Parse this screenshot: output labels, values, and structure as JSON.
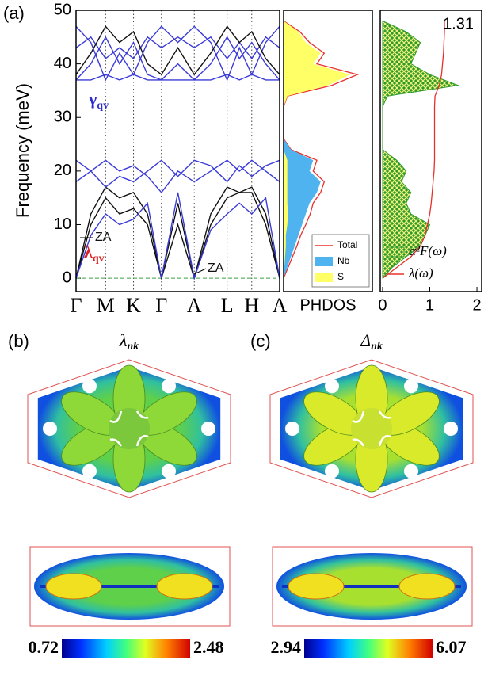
{
  "chart_data": [
    {
      "type": "line",
      "panel_label": "(a)",
      "ylabel": "Frequency (meV)",
      "x": [
        0,
        0.18,
        0.36,
        0.53,
        0.7,
        0.87,
        1.04,
        1.24,
        1.44,
        1.64,
        1.84,
        1.99,
        2.14,
        2.31,
        2.48
      ],
      "xlim": [
        0,
        2.48
      ],
      "xticks": [
        {
          "value": 0,
          "label": "Γ"
        },
        {
          "value": 0.36,
          "label": "M"
        },
        {
          "value": 0.7,
          "label": "K"
        },
        {
          "value": 1.04,
          "label": "Γ"
        },
        {
          "value": 1.44,
          "label": "A"
        },
        {
          "value": 1.84,
          "label": "L"
        },
        {
          "value": 2.14,
          "label": "H"
        },
        {
          "value": 2.48,
          "label": "A"
        }
      ],
      "ylim": [
        -2.5,
        50
      ],
      "yticks": [
        0,
        10,
        20,
        30,
        40,
        50
      ],
      "series": [
        {
          "color": "#111111",
          "values": [
            0,
            10,
            15,
            12,
            13,
            10,
            0,
            10,
            0,
            10,
            15,
            16,
            16,
            10,
            0
          ]
        },
        {
          "color": "#111111",
          "values": [
            0,
            12,
            17,
            15,
            16,
            12,
            0,
            14,
            0,
            12,
            17,
            16,
            17,
            12,
            0
          ]
        },
        {
          "color": "#3a3ad8",
          "values": [
            0,
            8,
            12,
            10,
            11,
            14,
            0,
            16,
            0,
            9,
            12,
            14,
            12,
            15,
            0
          ]
        },
        {
          "color": "#3a3ad8",
          "values": [
            18,
            20,
            22,
            20,
            21,
            19,
            16,
            20,
            18,
            20,
            22,
            20,
            22,
            20,
            18
          ]
        },
        {
          "color": "#3a3ad8",
          "values": [
            22,
            20,
            17,
            19,
            18,
            20,
            22,
            19,
            22,
            21,
            18,
            21,
            19,
            21,
            22
          ]
        },
        {
          "color": "#3a3ad8",
          "values": [
            37,
            40,
            45,
            40,
            44,
            38,
            37,
            40,
            37,
            40,
            45,
            41,
            44,
            40,
            37
          ]
        },
        {
          "color": "#3a3ad8",
          "values": [
            47,
            44,
            37,
            42,
            38,
            44,
            47,
            44,
            47,
            44,
            37,
            43,
            38,
            44,
            47
          ]
        },
        {
          "color": "#3a3ad8",
          "values": [
            37,
            37,
            38,
            37,
            38,
            37,
            37,
            37,
            37,
            37,
            38,
            37,
            38,
            37,
            37
          ]
        },
        {
          "color": "#3a3ad8",
          "values": [
            43,
            45,
            41,
            43,
            41,
            45,
            43,
            45,
            43,
            45,
            41,
            44,
            41,
            45,
            43
          ]
        },
        {
          "color": "#111111",
          "values": [
            38,
            42,
            47,
            44,
            46,
            40,
            38,
            43,
            38,
            42,
            47,
            44,
            46,
            41,
            38
          ]
        }
      ],
      "annotations": [
        {
          "text": "ZA",
          "color": "#111111"
        },
        {
          "text": "ZA",
          "color": "#111111"
        },
        {
          "text": "γ",
          "sub": "qv",
          "color": "#2b2bd0"
        },
        {
          "text": "λ",
          "sub": "qv",
          "color": "#e02020"
        }
      ]
    },
    {
      "type": "area",
      "xlabel": "PHDOS",
      "y": [
        0,
        2,
        4,
        6,
        8,
        10,
        12,
        14,
        16,
        18,
        20,
        22,
        24,
        26,
        28,
        30,
        32,
        34,
        36,
        38,
        40,
        42,
        44,
        46,
        48
      ],
      "xlim": [
        0,
        1.2
      ],
      "ylim": [
        -2.5,
        50
      ],
      "legend": "lower right",
      "series": [
        {
          "name": "Total",
          "color": "#e8302a",
          "style": "line",
          "values": [
            0,
            0.06,
            0.12,
            0.18,
            0.23,
            0.3,
            0.36,
            0.4,
            0.5,
            0.55,
            0.4,
            0.45,
            0.1,
            0,
            0,
            0,
            0,
            0.05,
            0.65,
            1.0,
            0.45,
            0.55,
            0.35,
            0.22,
            0
          ]
        },
        {
          "name": "Nb",
          "color": "#4fb3f0",
          "style": "fill",
          "values": [
            0,
            0.05,
            0.1,
            0.15,
            0.2,
            0.25,
            0.3,
            0.35,
            0.45,
            0.5,
            0.35,
            0.4,
            0.1,
            0,
            0,
            0,
            0,
            0,
            0.05,
            0.1,
            0.05,
            0.05,
            0.05,
            0.02,
            0
          ]
        },
        {
          "name": "S",
          "color": "#ffff66",
          "style": "fill",
          "values": [
            0,
            0.01,
            0.02,
            0.03,
            0.03,
            0.05,
            0.06,
            0.05,
            0.05,
            0.05,
            0.05,
            0.05,
            0,
            0,
            0,
            0,
            0,
            0.05,
            0.6,
            0.9,
            0.4,
            0.5,
            0.3,
            0.2,
            0
          ]
        }
      ]
    },
    {
      "type": "area",
      "y": [
        0,
        2,
        4,
        6,
        8,
        10,
        12,
        14,
        16,
        18,
        20,
        22,
        24,
        26,
        28,
        30,
        32,
        34,
        36,
        38,
        40,
        42,
        44,
        46,
        48
      ],
      "xlim": [
        -0.05,
        2.1
      ],
      "xticks": [
        0,
        1,
        2
      ],
      "ylim": [
        -2.5,
        50
      ],
      "legend": "lower right",
      "series": [
        {
          "name": "α²F(ω)",
          "color": "#2e9a2e",
          "style": "hatch",
          "values": [
            0,
            0.2,
            0.5,
            0.8,
            0.9,
            1.0,
            0.6,
            0.5,
            0.6,
            0.4,
            0.5,
            0.3,
            0,
            0,
            0,
            0,
            0,
            0.1,
            1.6,
            1.0,
            0.6,
            0.7,
            0.8,
            0.5,
            0
          ]
        },
        {
          "name": "λ(ω)",
          "color": "#e8302a",
          "style": "line",
          "values": [
            0,
            0.3,
            0.6,
            0.8,
            0.9,
            0.95,
            1.0,
            1.03,
            1.05,
            1.07,
            1.09,
            1.1,
            1.1,
            1.1,
            1.1,
            1.1,
            1.1,
            1.11,
            1.2,
            1.25,
            1.27,
            1.29,
            1.3,
            1.31,
            1.31
          ]
        }
      ],
      "annotations": [
        {
          "text": "1.31"
        }
      ]
    },
    {
      "type": "colormap",
      "panel_label": "(b)",
      "title": "λ",
      "title_sub": "nk",
      "range": [
        0.72,
        2.48
      ]
    },
    {
      "type": "colormap",
      "panel_label": "(c)",
      "title": "Δ",
      "title_sub": "nk",
      "range": [
        2.94,
        6.07
      ]
    }
  ]
}
